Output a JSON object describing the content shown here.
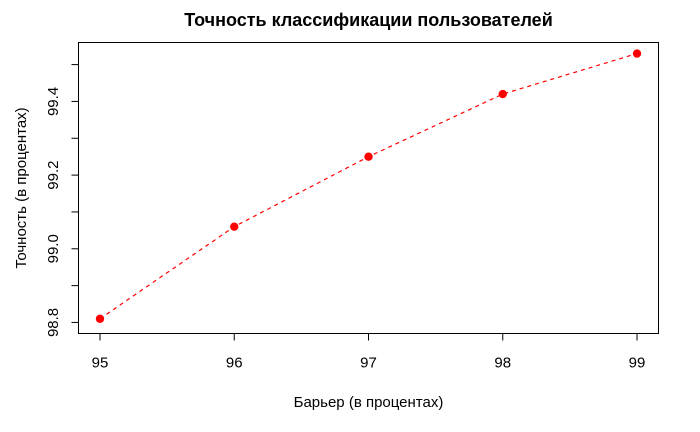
{
  "chart_data": {
    "type": "line",
    "title": "Точность классификации пользователей",
    "xlabel": "Барьер (в процентах)",
    "ylabel": "Точность (в процентах)",
    "x": [
      95,
      96,
      97,
      98,
      99
    ],
    "y": [
      98.81,
      99.06,
      99.25,
      99.42,
      99.53
    ],
    "xlim": [
      94.84,
      99.16
    ],
    "ylim": [
      98.77,
      99.56
    ],
    "x_ticks": {
      "values": [
        95,
        96,
        97,
        98,
        99
      ],
      "labels": [
        "95",
        "96",
        "97",
        "98",
        "99"
      ]
    },
    "y_ticks": {
      "values": [
        98.8,
        98.9,
        99.0,
        99.1,
        99.2,
        99.3,
        99.4,
        99.5
      ],
      "labels": [
        "98.8",
        "",
        "99.0",
        "",
        "99.2",
        "",
        "99.4",
        ""
      ]
    },
    "style": {
      "line_color": "#FF0000",
      "point_color": "#FF0000",
      "line_style": "dashed",
      "marker": "filled-circle",
      "axis_color": "#000000",
      "text_color": "#000000",
      "background": "#FFFFFF",
      "grid": false,
      "legend": "none"
    }
  }
}
